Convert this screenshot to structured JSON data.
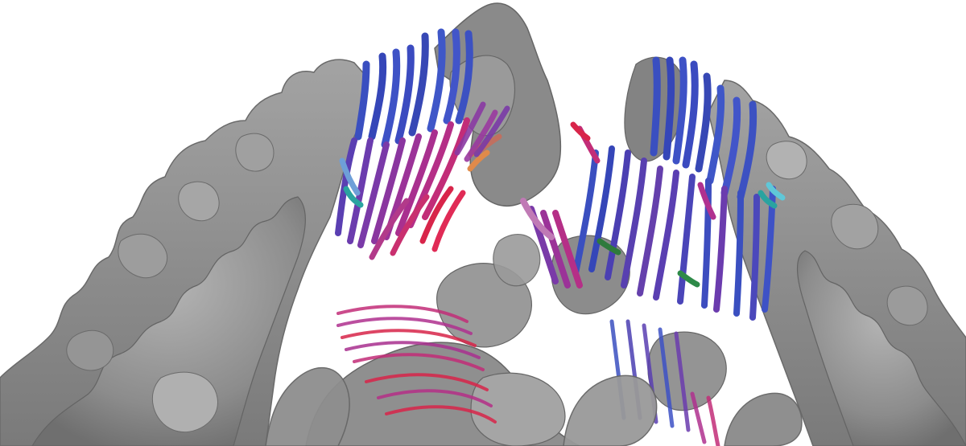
{
  "image": {
    "subject": "tractography-fibers-over-cortical-surface",
    "palette": {
      "background": "#ffffff",
      "cortex_light": "#9a9a9a",
      "cortex_mid": "#7f7f7f",
      "cortex_dark": "#5e5e5e",
      "fiber_blue": "#3a4fc0",
      "fiber_indigo": "#4b3fb2",
      "fiber_violet": "#7a3aa8",
      "fiber_magenta": "#b0318f",
      "fiber_red": "#d8254a",
      "fiber_teal": "#2aa3a0",
      "fiber_green": "#2e7a3c",
      "fiber_orange": "#d9793a"
    }
  }
}
